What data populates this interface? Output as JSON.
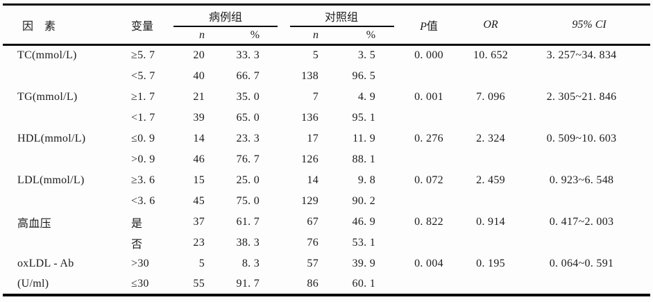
{
  "colors": {
    "text": "#1b1b1b",
    "rule": "#0a0a0a",
    "background": "#fdfdfd"
  },
  "table": {
    "headers": {
      "factor": "因　素",
      "variable": "变量",
      "case_group": "病例组",
      "control_group": "对照组",
      "n": "n",
      "pct": "%",
      "p_italic": "P",
      "p_suffix": "值",
      "or": "OR",
      "ci": "95% CI"
    },
    "rows": [
      {
        "factor": "TC(mmol/L)",
        "variable": "≥5. 7",
        "case_n": "20",
        "case_pct": "33. 3",
        "ctrl_n": "5",
        "ctrl_pct": "3. 5",
        "p": "0. 000",
        "or": "10. 652",
        "ci": "3. 257~34. 834"
      },
      {
        "factor": "",
        "variable": "<5. 7",
        "case_n": "40",
        "case_pct": "66. 7",
        "ctrl_n": "138",
        "ctrl_pct": "96. 5",
        "p": "",
        "or": "",
        "ci": ""
      },
      {
        "factor": "TG(mmol/L)",
        "variable": "≥1. 7",
        "case_n": "21",
        "case_pct": "35. 0",
        "ctrl_n": "7",
        "ctrl_pct": "4. 9",
        "p": "0. 001",
        "or": "7. 096",
        "ci": "2. 305~21. 846"
      },
      {
        "factor": "",
        "variable": "<1. 7",
        "case_n": "39",
        "case_pct": "65. 0",
        "ctrl_n": "136",
        "ctrl_pct": "95. 1",
        "p": "",
        "or": "",
        "ci": ""
      },
      {
        "factor": "HDL(mmol/L)",
        "variable": "≤0. 9",
        "case_n": "14",
        "case_pct": "23. 3",
        "ctrl_n": "17",
        "ctrl_pct": "11. 9",
        "p": "0. 276",
        "or": "2. 324",
        "ci": "0. 509~10. 603"
      },
      {
        "factor": "",
        "variable": ">0. 9",
        "case_n": "46",
        "case_pct": "76. 7",
        "ctrl_n": "126",
        "ctrl_pct": "88. 1",
        "p": "",
        "or": "",
        "ci": ""
      },
      {
        "factor": "LDL(mmol/L)",
        "variable": "≥3. 6",
        "case_n": "15",
        "case_pct": "25. 0",
        "ctrl_n": "14",
        "ctrl_pct": "9. 8",
        "p": "0. 072",
        "or": "2. 459",
        "ci": "0. 923~6. 548"
      },
      {
        "factor": "",
        "variable": "<3. 6",
        "case_n": "45",
        "case_pct": "75. 0",
        "ctrl_n": "129",
        "ctrl_pct": "90. 2",
        "p": "",
        "or": "",
        "ci": ""
      },
      {
        "factor": "高血压",
        "variable": "是",
        "case_n": "37",
        "case_pct": "61. 7",
        "ctrl_n": "67",
        "ctrl_pct": "46. 9",
        "p": "0. 822",
        "or": "0. 914",
        "ci": "0. 417~2. 003"
      },
      {
        "factor": "",
        "variable": "否",
        "case_n": "23",
        "case_pct": "38. 3",
        "ctrl_n": "76",
        "ctrl_pct": "53. 1",
        "p": "",
        "or": "",
        "ci": ""
      },
      {
        "factor": "oxLDL - Ab",
        "variable": ">30",
        "case_n": "5",
        "case_pct": "8. 3",
        "ctrl_n": "57",
        "ctrl_pct": "39. 9",
        "p": "0. 004",
        "or": "0. 195",
        "ci": "0. 064~0. 591"
      },
      {
        "factor": "(U/ml)",
        "variable": "≤30",
        "case_n": "55",
        "case_pct": "91. 7",
        "ctrl_n": "86",
        "ctrl_pct": "60. 1",
        "p": "",
        "or": "",
        "ci": ""
      }
    ]
  }
}
